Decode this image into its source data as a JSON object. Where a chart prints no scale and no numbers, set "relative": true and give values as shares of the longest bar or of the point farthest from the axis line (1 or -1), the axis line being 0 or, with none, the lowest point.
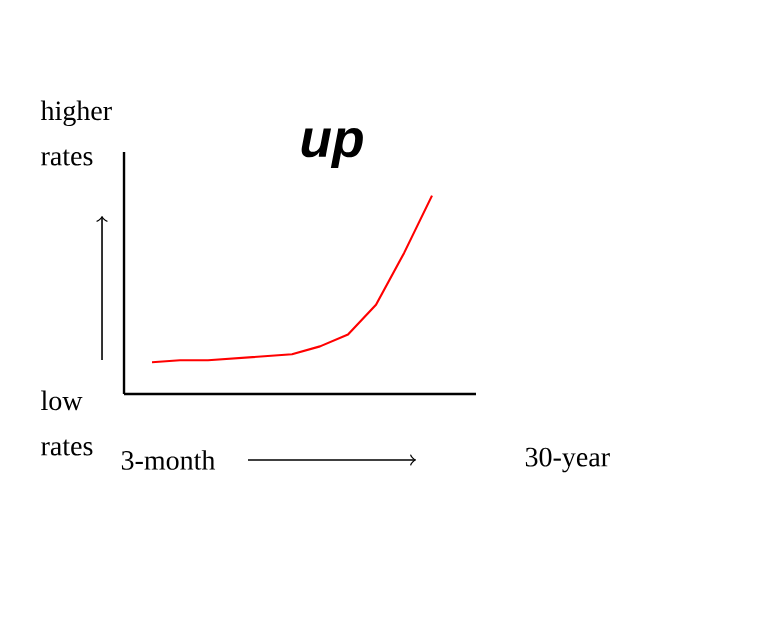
{
  "chart_data": {
    "type": "line",
    "title": "up",
    "annotations": [
      "higher rates",
      "low rates",
      "3-month",
      "30-year"
    ],
    "categories": [
      null,
      null,
      null,
      null,
      null,
      null,
      null,
      null,
      null,
      null,
      null
    ],
    "values": [
      0.16,
      0.17,
      0.17,
      0.18,
      0.19,
      0.2,
      0.24,
      0.3,
      0.45,
      0.71,
      1
    ],
    "color": "#ff0000",
    "relative": true
  }
}
